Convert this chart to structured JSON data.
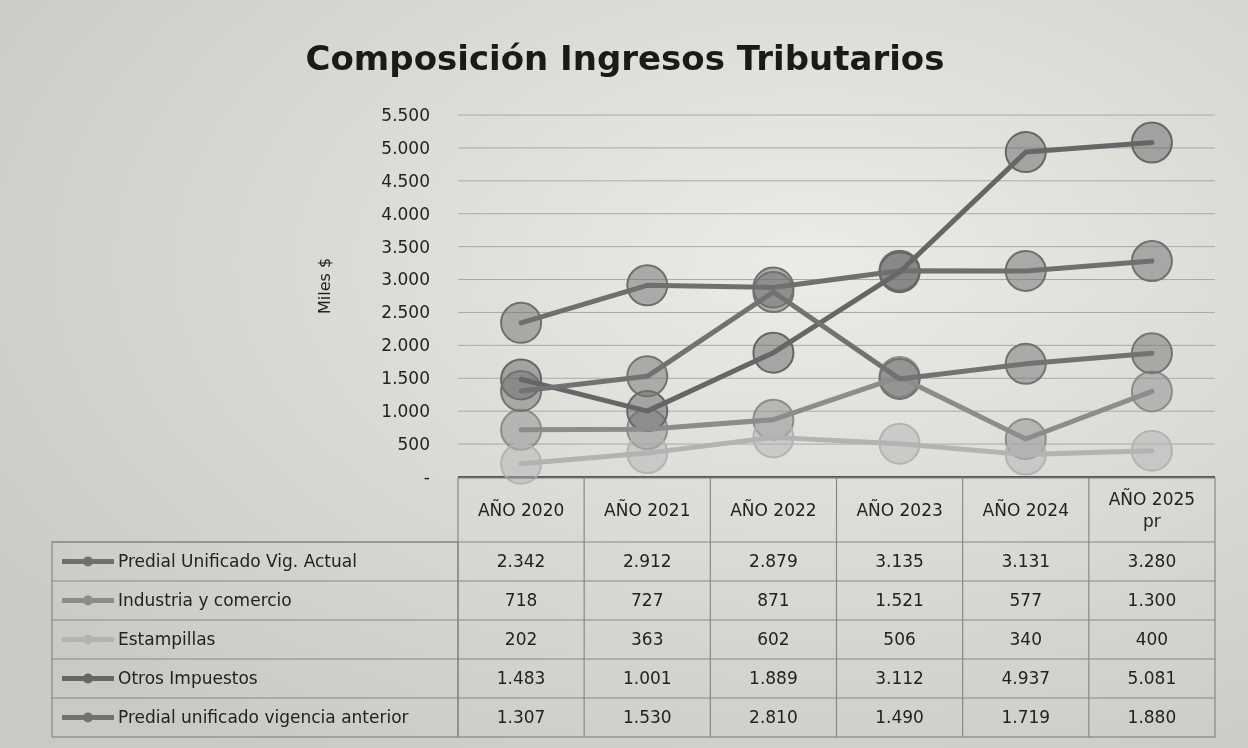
{
  "chart_data": {
    "type": "line",
    "title": "Composición Ingresos Tributarios",
    "ylabel": "Miles $",
    "categories": [
      "AÑO 2020",
      "AÑO 2021",
      "AÑO 2022",
      "AÑO 2023",
      "AÑO 2024",
      "AÑO 2025 pr"
    ],
    "ylim": [
      0,
      5500
    ],
    "yticks": [
      {
        "value": 0,
        "label": "-"
      },
      500,
      {
        "value": 1000,
        "label": "1.000"
      },
      {
        "value": 1500,
        "label": "1.500"
      },
      {
        "value": 2000,
        "label": "2.000"
      },
      {
        "value": 2500,
        "label": "2.500"
      },
      {
        "value": 3000,
        "label": "3.000"
      },
      {
        "value": 3500,
        "label": "3.500"
      },
      {
        "value": 4000,
        "label": "4.000"
      },
      {
        "value": 4500,
        "label": "4.500"
      },
      {
        "value": 5000,
        "label": "5.000"
      },
      {
        "value": 5500,
        "label": "5.500"
      }
    ],
    "grid": "y",
    "legend": "bottom",
    "marker": "circle",
    "line_style": "solid",
    "series": [
      {
        "name": "Predial Unificado Vig. Actual",
        "color": "#6f6f6f",
        "values": [
          2342,
          2912,
          2879,
          3135,
          3131,
          3280
        ],
        "value_labels": [
          "2.342",
          "2.912",
          "2.879",
          "3.135",
          "3.131",
          "3.280"
        ]
      },
      {
        "name": "Industria y comercio",
        "color": "#8c8c8c",
        "values": [
          718,
          727,
          871,
          1521,
          577,
          1300
        ],
        "value_labels": [
          "718",
          "727",
          "871",
          "1.521",
          "577",
          "1.300"
        ]
      },
      {
        "name": "Estampillas",
        "color": "#b3b3b3",
        "values": [
          202,
          363,
          602,
          506,
          340,
          400
        ],
        "value_labels": [
          "202",
          "363",
          "602",
          "506",
          "340",
          "400"
        ]
      },
      {
        "name": "Otros Impuestos",
        "color": "#666666",
        "values": [
          1483,
          1001,
          1889,
          3112,
          4937,
          5081
        ],
        "value_labels": [
          "1.483",
          "1.001",
          "1.889",
          "3.112",
          "4.937",
          "5.081"
        ]
      },
      {
        "name": "Predial unificado vigencia anterior",
        "color": "#727272",
        "values": [
          1307,
          1530,
          2810,
          1490,
          1719,
          1880
        ],
        "value_labels": [
          "1.307",
          "1.530",
          "2.810",
          "1.490",
          "1.719",
          "1.880"
        ]
      }
    ]
  }
}
